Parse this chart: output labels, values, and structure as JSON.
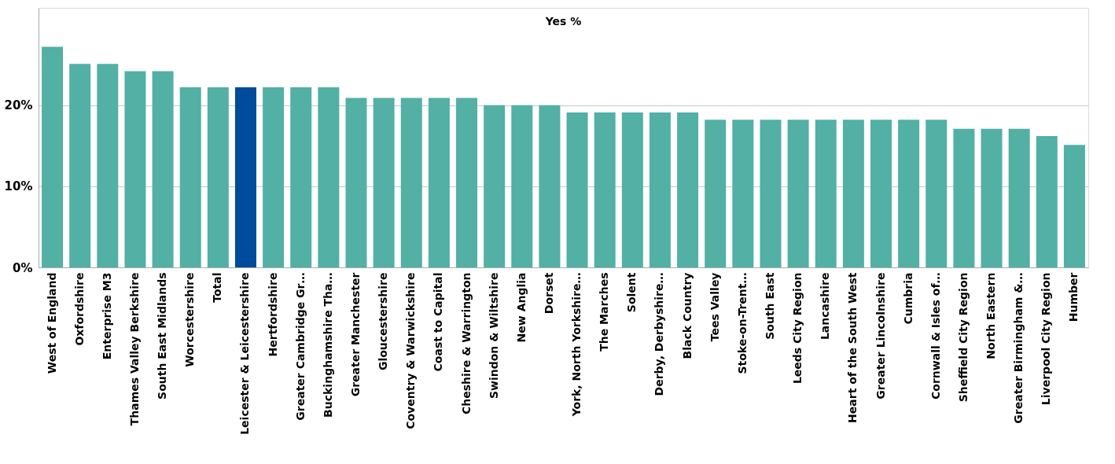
{
  "chart_data": {
    "type": "bar",
    "title": "Yes %",
    "categories": [
      "West of England",
      "Oxfordshire",
      "Enterprise M3",
      "Thames Valley Berkshire",
      "South East Midlands",
      "Worcestershire",
      "Total",
      "Leicester & Leicestershire",
      "Hertfordshire",
      "Greater Cambridge Gr…",
      "Buckinghamshire Tha…",
      "Greater Manchester",
      "Gloucestershire",
      "Coventry & Warwickshire",
      "Coast to Capital",
      "Cheshire & Warrington",
      "Swindon & Wiltshire",
      "New Anglia",
      "Dorset",
      "York, North Yorkshire…",
      "The Marches",
      "Solent",
      "Derby, Derbyshire…",
      "Black Country",
      "Tees Valley",
      "Stoke-on-Trent…",
      "South East",
      "Leeds City Region",
      "Lancashire",
      "Heart of the South West",
      "Greater Lincolnshire",
      "Cumbria",
      "Cornwall & Isles of…",
      "Sheffield City Region",
      "North Eastern",
      "Greater Birmingham &…",
      "Liverpool City Region",
      "Humber"
    ],
    "values": [
      27.2,
      25.1,
      25.1,
      24.2,
      24.2,
      22.2,
      22.2,
      22.2,
      22.2,
      22.2,
      22.2,
      20.9,
      20.9,
      20.9,
      20.9,
      20.9,
      20,
      20,
      20,
      19.1,
      19.1,
      19.1,
      19.1,
      19.1,
      18.2,
      18.2,
      18.2,
      18.2,
      18.2,
      18.2,
      18.2,
      18.2,
      18.2,
      17.1,
      17.1,
      17.1,
      16.2,
      15.1
    ],
    "colors": [
      "#52b0a5",
      "#52b0a5",
      "#52b0a5",
      "#52b0a5",
      "#52b0a5",
      "#52b0a5",
      "#52b0a5",
      "#004b9b",
      "#52b0a5",
      "#52b0a5",
      "#52b0a5",
      "#52b0a5",
      "#52b0a5",
      "#52b0a5",
      "#52b0a5",
      "#52b0a5",
      "#52b0a5",
      "#52b0a5",
      "#52b0a5",
      "#52b0a5",
      "#52b0a5",
      "#52b0a5",
      "#52b0a5",
      "#52b0a5",
      "#52b0a5",
      "#52b0a5",
      "#52b0a5",
      "#52b0a5",
      "#52b0a5",
      "#52b0a5",
      "#52b0a5",
      "#52b0a5",
      "#52b0a5",
      "#52b0a5",
      "#52b0a5",
      "#52b0a5",
      "#52b0a5",
      "#52b0a5"
    ],
    "ylim": [
      0,
      32
    ],
    "yticks": [
      {
        "value": 0,
        "label": "0%"
      },
      {
        "value": 10,
        "label": "10%"
      },
      {
        "value": 20,
        "label": "20%"
      }
    ],
    "grid": "y",
    "legend": false
  }
}
